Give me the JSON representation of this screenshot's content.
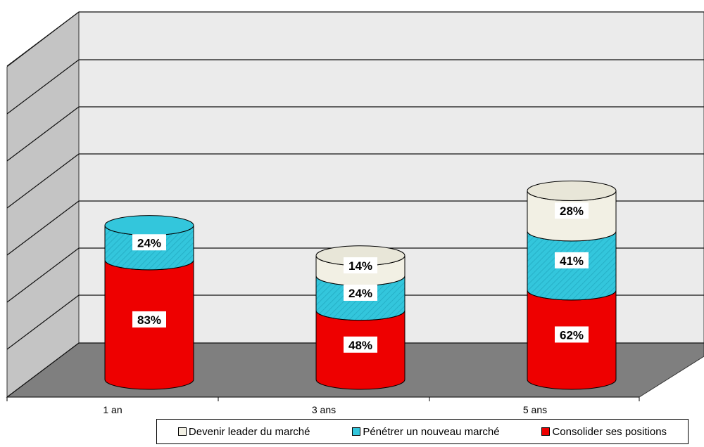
{
  "chart_data": {
    "type": "bar",
    "stacked": true,
    "categories": [
      "1 an",
      "3 ans",
      "5 ans"
    ],
    "series": [
      {
        "name": "Consolider ses positions",
        "values": [
          83,
          48,
          62
        ],
        "color": "#ee0000"
      },
      {
        "name": "Pénétrer un nouveau marché",
        "values": [
          24,
          24,
          41
        ],
        "color": "#33c6dc"
      },
      {
        "name": "Devenir leader du marché",
        "values": [
          0,
          14,
          28
        ],
        "color": "#f2f0e4"
      }
    ],
    "data_labels": [
      [
        "83%",
        "48%",
        "62%"
      ],
      [
        "24%",
        "24%",
        "41%"
      ],
      [
        "",
        "14%",
        "28%"
      ]
    ],
    "legend_order": [
      2,
      1,
      0
    ],
    "ylim": [
      0,
      140
    ],
    "grid": true,
    "legend_position": "bottom-right",
    "colors": {
      "wall": "#ebebeb",
      "floor": "#7f7f7f",
      "side_wall": "#c4c4c4"
    }
  }
}
